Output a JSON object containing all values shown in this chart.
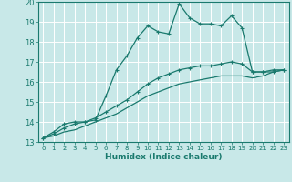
{
  "xlabel": "Humidex (Indice chaleur)",
  "bg_color": "#c8e8e8",
  "grid_color": "#ffffff",
  "line_color": "#1a7a6e",
  "xlim": [
    -0.5,
    23.5
  ],
  "ylim": [
    13,
    20
  ],
  "xticks": [
    0,
    1,
    2,
    3,
    4,
    5,
    6,
    7,
    8,
    9,
    10,
    11,
    12,
    13,
    14,
    15,
    16,
    17,
    18,
    19,
    20,
    21,
    22,
    23
  ],
  "yticks": [
    13,
    14,
    15,
    16,
    17,
    18,
    19,
    20
  ],
  "series1_x": [
    0,
    1,
    2,
    3,
    4,
    5,
    6,
    7,
    8,
    9,
    10,
    11,
    12,
    13,
    14,
    15,
    16,
    17,
    18,
    19,
    20,
    21,
    22,
    23
  ],
  "series1_y": [
    13.2,
    13.5,
    13.9,
    14.0,
    14.0,
    14.1,
    15.3,
    16.6,
    17.3,
    18.2,
    18.8,
    18.5,
    18.4,
    19.9,
    19.2,
    18.9,
    18.9,
    18.8,
    19.3,
    18.7,
    16.5,
    16.5,
    16.6,
    16.6
  ],
  "series2_x": [
    0,
    1,
    2,
    3,
    4,
    5,
    6,
    7,
    8,
    9,
    10,
    11,
    12,
    13,
    14,
    15,
    16,
    17,
    18,
    19,
    20,
    21,
    22,
    23
  ],
  "series2_y": [
    13.2,
    13.4,
    13.7,
    13.9,
    14.0,
    14.2,
    14.5,
    14.8,
    15.1,
    15.5,
    15.9,
    16.2,
    16.4,
    16.6,
    16.7,
    16.8,
    16.8,
    16.9,
    17.0,
    16.9,
    16.5,
    16.5,
    16.5,
    16.6
  ],
  "series3_x": [
    0,
    1,
    2,
    3,
    4,
    5,
    6,
    7,
    8,
    9,
    10,
    11,
    12,
    13,
    14,
    15,
    16,
    17,
    18,
    19,
    20,
    21,
    22,
    23
  ],
  "series3_y": [
    13.2,
    13.3,
    13.5,
    13.6,
    13.8,
    14.0,
    14.2,
    14.4,
    14.7,
    15.0,
    15.3,
    15.5,
    15.7,
    15.9,
    16.0,
    16.1,
    16.2,
    16.3,
    16.3,
    16.3,
    16.2,
    16.3,
    16.5,
    16.6
  ]
}
